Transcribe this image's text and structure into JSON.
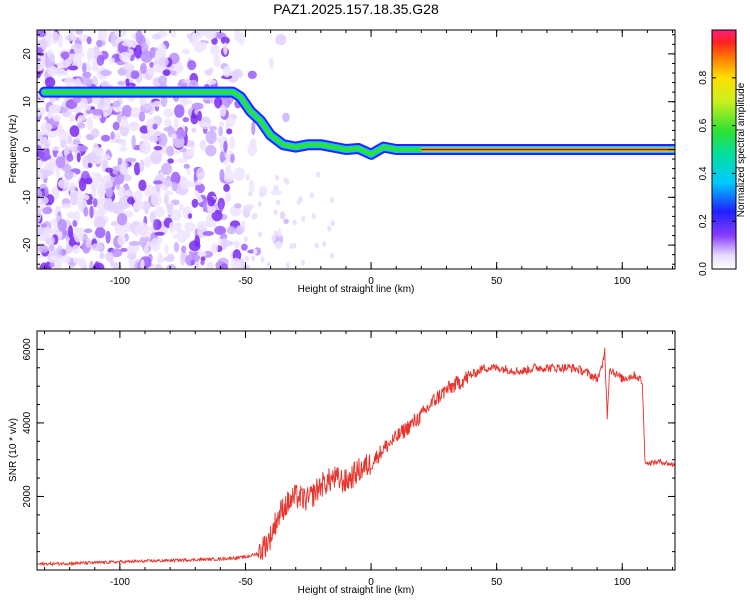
{
  "title": "PAZ1.2025.157.18.35.G28",
  "colors": {
    "snr_line": "#e8342c",
    "ridge_core": "#e8342c",
    "axis": "#000000"
  },
  "chart_data": [
    {
      "type": "heatmap",
      "title": "PAZ1.2025.157.18.35.G28",
      "xlabel": "Height of straight line (km)",
      "ylabel": "Frequency (Hz)",
      "xlim": [
        -133,
        121
      ],
      "ylim": [
        -25,
        25
      ],
      "x_ticks": [
        "-100",
        "-50",
        "0",
        "50",
        "100"
      ],
      "x_tick_values": [
        -100,
        -50,
        0,
        50,
        100
      ],
      "y_ticks": [
        "20",
        "10",
        "0",
        "-10",
        "-20"
      ],
      "y_tick_values": [
        20,
        10,
        0,
        -10,
        -20
      ],
      "colorbar": {
        "label": "Normalized spectral amplitude",
        "range": [
          0,
          1
        ],
        "ticks": [
          "0.0",
          "0.2",
          "0.4",
          "0.6",
          "0.8"
        ],
        "tick_values": [
          0,
          0.2,
          0.4,
          0.6,
          0.8
        ],
        "colormap": "rainbow"
      },
      "ridge": {
        "x": [
          -130,
          -100,
          -80,
          -60,
          -55,
          -52,
          -48,
          -44,
          -40,
          -35,
          -30,
          -25,
          -20,
          -15,
          -10,
          -5,
          0,
          5,
          10,
          20,
          40,
          60,
          80,
          100,
          121
        ],
        "y": [
          12,
          12,
          12,
          12,
          12,
          11,
          8,
          6,
          3,
          1,
          0.5,
          1,
          1,
          0.5,
          0,
          0.2,
          -1,
          0.5,
          0,
          0,
          0,
          0,
          0,
          0,
          0
        ]
      }
    },
    {
      "type": "line",
      "xlabel": "Height of straight line (km)",
      "ylabel": "SNR (10 * v/v)",
      "xlim": [
        -133,
        121
      ],
      "ylim": [
        0,
        6500
      ],
      "x_ticks": [
        "-100",
        "-50",
        "0",
        "50",
        "100"
      ],
      "x_tick_values": [
        -100,
        -50,
        0,
        50,
        100
      ],
      "y_ticks": [
        "6000",
        "4000",
        "2000"
      ],
      "y_tick_values": [
        6000,
        4000,
        2000
      ],
      "series": [
        {
          "x": [
            -133,
            -120,
            -100,
            -80,
            -60,
            -50,
            -45,
            -42,
            -40,
            -38,
            -35,
            -30,
            -25,
            -20,
            -15,
            -10,
            -5,
            0,
            5,
            10,
            15,
            20,
            25,
            30,
            35,
            40,
            45,
            50,
            55,
            60,
            65,
            70,
            75,
            80,
            85,
            90,
            92,
            93,
            94,
            95,
            98,
            100,
            105,
            107,
            108,
            109,
            110,
            115,
            121
          ],
          "y": [
            160,
            180,
            220,
            260,
            300,
            350,
            450,
            700,
            900,
            1300,
            1700,
            2000,
            1900,
            2300,
            2500,
            2400,
            2700,
            2900,
            3300,
            3600,
            3900,
            4200,
            4600,
            4900,
            5100,
            5300,
            5500,
            5500,
            5450,
            5400,
            5500,
            5500,
            5500,
            5500,
            5400,
            5200,
            5500,
            6000,
            4200,
            5500,
            5300,
            5200,
            5300,
            5200,
            5100,
            3000,
            2900,
            2950,
            2850
          ]
        }
      ]
    }
  ]
}
